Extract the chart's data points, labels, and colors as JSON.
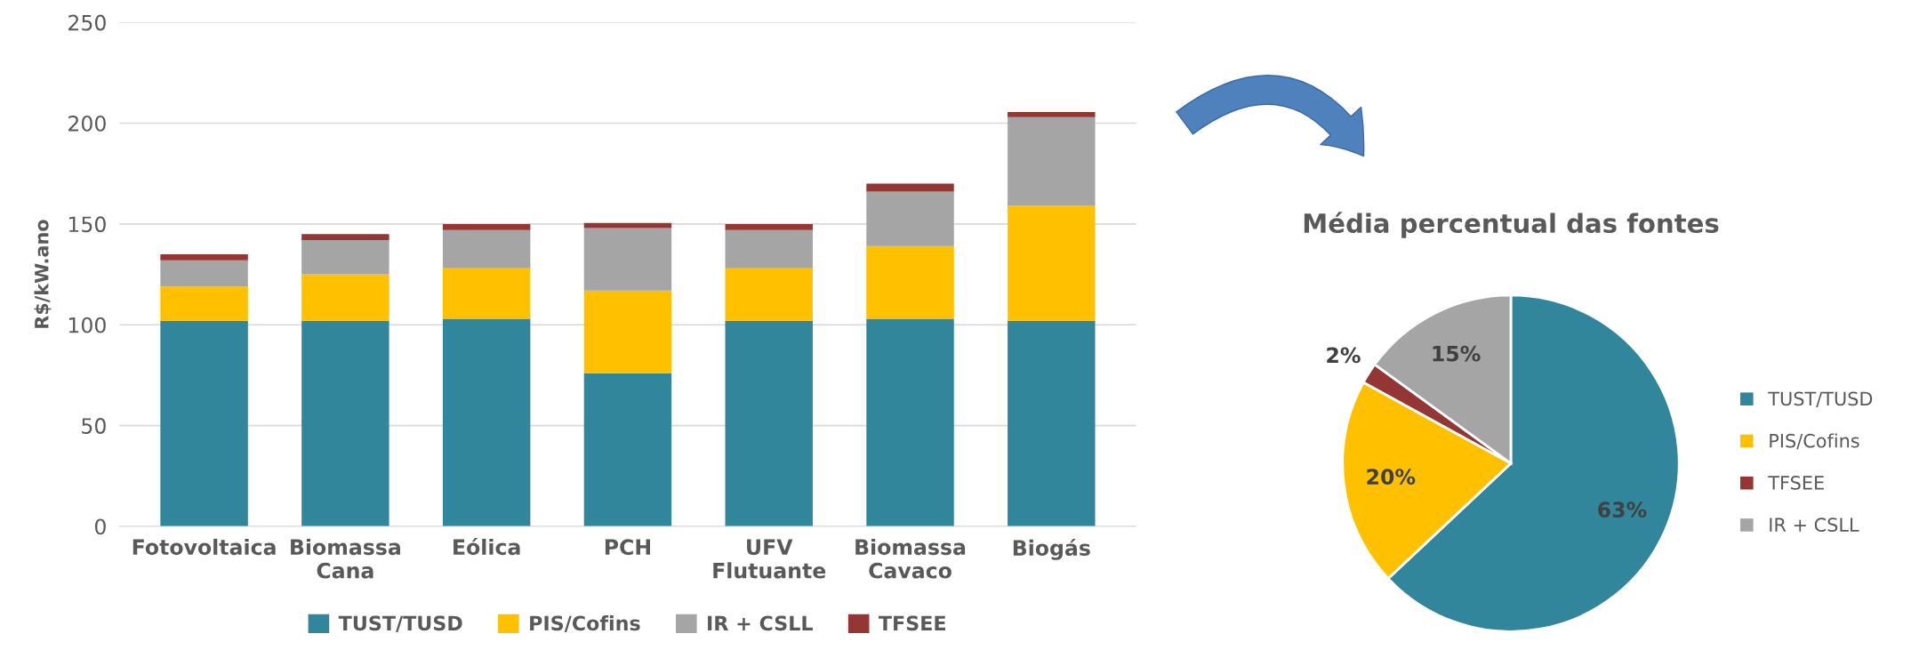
{
  "chart_data": [
    {
      "type": "bar",
      "stacked": true,
      "ylabel": "R$/kW.ano",
      "categories": [
        "Fotovoltaica",
        "Biomassa Cana",
        "Eólica",
        "PCH",
        "UFV Flutuante",
        "Biomassa Cavaco",
        "Biogás"
      ],
      "series": [
        {
          "name": "TUST/TUSD",
          "color": "#31869b",
          "values": [
            102,
            102,
            103,
            76,
            102,
            103,
            102
          ]
        },
        {
          "name": "PIS/Cofins",
          "color": "#ffc000",
          "values": [
            17,
            23,
            25,
            41,
            26,
            36,
            57
          ]
        },
        {
          "name": "IR + CSLL",
          "color": "#a5a5a5",
          "values": [
            13,
            17,
            19,
            31,
            19,
            27,
            44
          ]
        },
        {
          "name": "TFSEE",
          "color": "#943634",
          "values": [
            3,
            3,
            3,
            2.5,
            3,
            4,
            2.5
          ]
        }
      ],
      "ylim": [
        0,
        250
      ],
      "yticks": [
        0,
        50,
        100,
        150,
        200,
        250
      ],
      "grid": "y",
      "legend": "bottom"
    },
    {
      "type": "pie",
      "title": "Média percentual das fontes",
      "categories": [
        "TUST/TUSD",
        "PIS/Cofins",
        "TFSEE",
        "IR + CSLL"
      ],
      "values": [
        63,
        20,
        2,
        15
      ],
      "colors": [
        "#31869b",
        "#ffc000",
        "#943634",
        "#a5a5a5"
      ],
      "value_labels": [
        "63%",
        "20%",
        "2%",
        "15%"
      ],
      "legend": "right"
    }
  ]
}
